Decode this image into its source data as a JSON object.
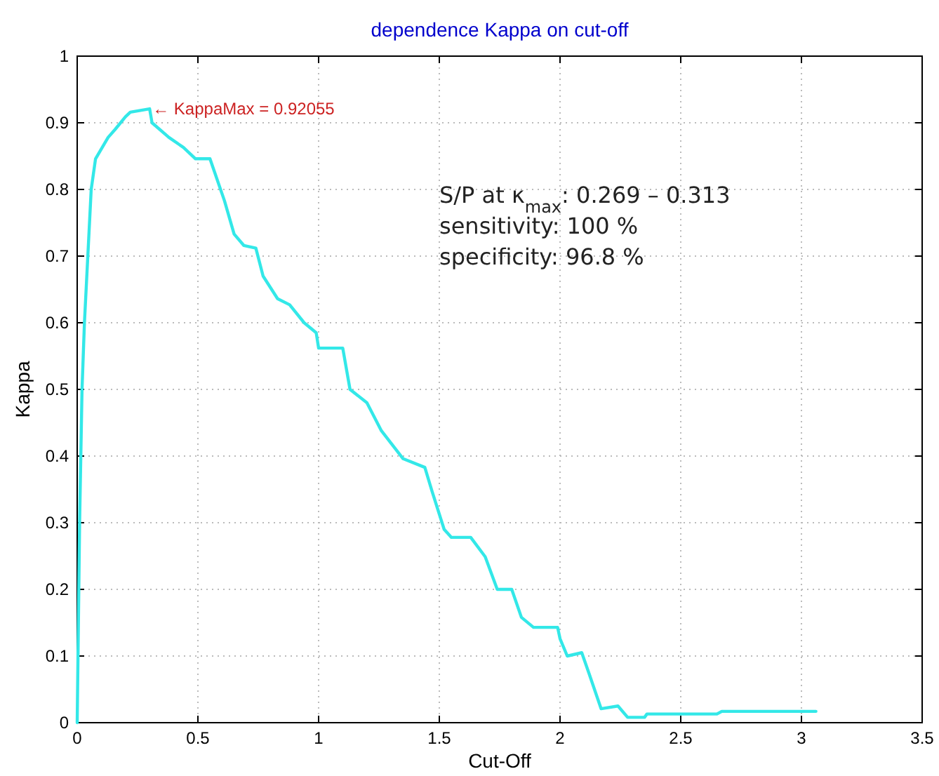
{
  "chart_data": {
    "type": "line",
    "title": "dependence Kappa on cut-off",
    "xlabel": "Cut-Off",
    "ylabel": "Kappa",
    "xlim": [
      0,
      3.5
    ],
    "xticks": [
      0,
      0.5,
      1,
      1.5,
      2,
      2.5,
      3,
      3.5
    ],
    "ylim": [
      0,
      1
    ],
    "yticks": [
      0,
      0.1,
      0.2,
      0.3,
      0.4,
      0.5,
      0.6,
      0.7,
      0.8,
      0.9,
      1
    ],
    "grid": true,
    "line_style": "solid",
    "marker": "none",
    "series": [
      {
        "color": "#33e8e8",
        "x": [
          0,
          0.01,
          0.02,
          0.03,
          0.058,
          0.076,
          0.128,
          0.157,
          0.2,
          0.22,
          0.3,
          0.31,
          0.38,
          0.44,
          0.49,
          0.55,
          0.61,
          0.65,
          0.69,
          0.74,
          0.77,
          0.83,
          0.88,
          0.94,
          0.99,
          1.0,
          1.1,
          1.13,
          1.2,
          1.26,
          1.35,
          1.44,
          1.47,
          1.52,
          1.55,
          1.63,
          1.69,
          1.74,
          1.8,
          1.84,
          1.89,
          1.99,
          2.0,
          2.03,
          2.09,
          2.12,
          2.17,
          2.24,
          2.28,
          2.35,
          2.36,
          2.65,
          2.67,
          3.06
        ],
        "values": [
          0,
          0.3,
          0.5,
          0.6,
          0.8,
          0.846,
          0.878,
          0.89,
          0.909,
          0.916,
          0.921,
          0.9,
          0.878,
          0.863,
          0.846,
          0.846,
          0.783,
          0.733,
          0.716,
          0.712,
          0.67,
          0.636,
          0.627,
          0.6,
          0.585,
          0.562,
          0.562,
          0.5,
          0.48,
          0.438,
          0.396,
          0.383,
          0.347,
          0.29,
          0.278,
          0.278,
          0.249,
          0.2,
          0.2,
          0.158,
          0.143,
          0.143,
          0.126,
          0.1,
          0.105,
          0.074,
          0.021,
          0.025,
          0.008,
          0.008,
          0.013,
          0.013,
          0.017,
          0.017
        ]
      }
    ],
    "annotations": [
      {
        "text": "← KappaMax = 0.92055",
        "x": 0.3,
        "y": 0.92055
      },
      "S/P at κ$_{max}$: 0.269 – 0.313",
      "sensitivity: 100 %",
      "specificity: 96.8 %"
    ]
  }
}
